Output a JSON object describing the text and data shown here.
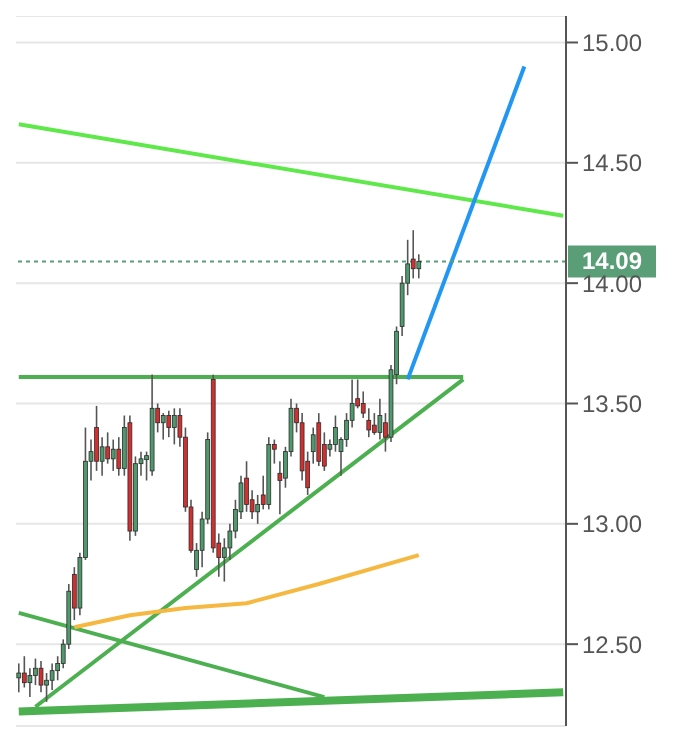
{
  "chart_data": {
    "type": "candlestick",
    "tick_labels": "y",
    "grid": "y",
    "ylim": [
      12.16,
      15.11
    ],
    "yticks": [
      {
        "value": 12.5,
        "label": "12.50"
      },
      {
        "value": 13,
        "label": "13.00"
      },
      {
        "value": 13.5,
        "label": "13.50"
      },
      {
        "value": 14,
        "label": "14.00"
      },
      {
        "value": 14.5,
        "label": "14.50"
      },
      {
        "value": 15,
        "label": "15.00"
      }
    ],
    "categories": [
      null,
      null,
      null,
      null,
      null,
      null,
      null,
      null,
      null,
      null,
      null,
      null,
      null,
      null,
      null,
      null,
      null,
      null,
      null,
      null,
      null,
      null,
      null,
      null,
      null,
      null,
      null,
      null,
      null,
      null,
      null,
      null,
      null,
      null,
      null,
      null,
      null,
      null,
      null,
      null,
      null,
      null,
      null,
      null,
      null,
      null,
      null,
      null,
      null,
      null,
      null,
      null,
      null,
      null,
      null,
      null,
      null,
      null,
      null,
      null,
      null,
      null,
      null,
      null,
      null,
      null,
      null,
      null,
      null,
      null,
      null,
      null,
      null,
      null,
      null,
      null,
      null,
      null,
      null,
      null,
      null,
      null,
      null,
      null,
      null,
      null,
      null,
      null,
      null,
      null,
      null,
      null,
      null,
      null,
      null,
      null,
      null,
      null,
      null
    ],
    "ohlc": [
      [
        12.36,
        12.42,
        12.3,
        12.38
      ],
      [
        12.38,
        12.45,
        12.32,
        12.34
      ],
      [
        12.34,
        12.4,
        12.28,
        12.37
      ],
      [
        12.37,
        12.44,
        12.33,
        12.4
      ],
      [
        12.4,
        12.43,
        12.3,
        12.33
      ],
      [
        12.33,
        12.38,
        12.26,
        12.35
      ],
      [
        12.35,
        12.42,
        12.31,
        12.39
      ],
      [
        12.39,
        12.45,
        12.35,
        12.42
      ],
      [
        12.42,
        12.52,
        12.4,
        12.5
      ],
      [
        12.5,
        12.75,
        12.48,
        12.72
      ],
      [
        12.79,
        12.82,
        12.6,
        12.65
      ],
      [
        12.65,
        12.88,
        12.62,
        12.86
      ],
      [
        12.86,
        13.4,
        12.85,
        13.26
      ],
      [
        13.26,
        13.35,
        13.18,
        13.3
      ],
      [
        13.4,
        13.49,
        13.22,
        13.26
      ],
      [
        13.26,
        13.36,
        13.2,
        13.32
      ],
      [
        13.32,
        13.38,
        13.25,
        13.27
      ],
      [
        13.27,
        13.35,
        13.22,
        13.31
      ],
      [
        13.31,
        13.36,
        13.2,
        13.23
      ],
      [
        13.23,
        13.45,
        13.2,
        13.4
      ],
      [
        13.42,
        13.45,
        12.93,
        12.97
      ],
      [
        12.97,
        13.28,
        12.95,
        13.25
      ],
      [
        13.25,
        13.3,
        13.2,
        13.27
      ],
      [
        13.27,
        13.3,
        13.18,
        13.28
      ],
      [
        13.22,
        13.62,
        13.2,
        13.48
      ],
      [
        13.48,
        13.5,
        13.38,
        13.42
      ],
      [
        13.42,
        13.46,
        13.35,
        13.45
      ],
      [
        13.45,
        13.47,
        13.36,
        13.4
      ],
      [
        13.4,
        13.48,
        13.33,
        13.45
      ],
      [
        13.45,
        13.48,
        13.32,
        13.36
      ],
      [
        13.36,
        13.4,
        13.05,
        13.07
      ],
      [
        13.07,
        13.1,
        12.88,
        12.89
      ],
      [
        12.81,
        12.92,
        12.78,
        12.89
      ],
      [
        12.89,
        13.05,
        12.82,
        13.02
      ],
      [
        13.02,
        13.38,
        13,
        13.35
      ],
      [
        13.6,
        13.62,
        12.88,
        12.9
      ],
      [
        12.92,
        12.96,
        12.78,
        12.86
      ],
      [
        12.86,
        12.94,
        12.76,
        12.9
      ],
      [
        12.9,
        13,
        12.85,
        12.97
      ],
      [
        12.97,
        13.1,
        12.94,
        13.06
      ],
      [
        13.05,
        13.2,
        13.02,
        13.17
      ],
      [
        13.19,
        13.26,
        13.05,
        13.08
      ],
      [
        13.1,
        13.14,
        13.02,
        13.05
      ],
      [
        13.05,
        13.12,
        13,
        13.08
      ],
      [
        13.12,
        13.2,
        13.06,
        13.08
      ],
      [
        13.08,
        13.36,
        13.06,
        13.33
      ],
      [
        13.33,
        13.35,
        13.25,
        13.31
      ],
      [
        13.21,
        13.26,
        13.04,
        13.18
      ],
      [
        13.19,
        13.32,
        13.15,
        13.3
      ],
      [
        13.3,
        13.52,
        13.28,
        13.48
      ],
      [
        13.48,
        13.5,
        13.38,
        13.42
      ],
      [
        13.42,
        13.46,
        13.18,
        13.22
      ],
      [
        13.26,
        13.3,
        13.12,
        13.15
      ],
      [
        13.3,
        13.4,
        13.25,
        13.37
      ],
      [
        13.42,
        13.46,
        13.24,
        13.26
      ],
      [
        13.33,
        13.38,
        13.22,
        13.24
      ],
      [
        13.31,
        13.35,
        13.28,
        13.33
      ],
      [
        13.33,
        13.45,
        13.3,
        13.4
      ],
      [
        13.3,
        13.36,
        13.2,
        13.35
      ],
      [
        13.35,
        13.46,
        13.32,
        13.43
      ],
      [
        13.43,
        13.6,
        13.4,
        13.5
      ],
      [
        13.52,
        13.6,
        13.48,
        13.49
      ],
      [
        13.5,
        13.55,
        13.44,
        13.46
      ],
      [
        13.43,
        13.48,
        13.36,
        13.39
      ],
      [
        13.41,
        13.46,
        13.37,
        13.38
      ],
      [
        13.38,
        13.52,
        13.35,
        13.45
      ],
      [
        13.42,
        13.46,
        13.3,
        13.36
      ],
      [
        13.36,
        13.66,
        13.34,
        13.64
      ],
      [
        13.62,
        13.82,
        13.58,
        13.8
      ],
      [
        13.82,
        14.03,
        13.78,
        14
      ],
      [
        14,
        14.18,
        13.95,
        14.08
      ],
      [
        14.1,
        14.22,
        14.02,
        14.06
      ],
      [
        14.06,
        14.12,
        14.02,
        14.09
      ],
      null,
      null,
      null,
      null,
      null,
      null,
      null,
      null,
      null,
      null,
      null,
      null,
      null,
      null,
      null,
      null,
      null,
      null,
      null,
      null,
      null,
      null,
      null,
      null,
      null,
      null
    ],
    "series": [
      {
        "type": "line",
        "color": "#5ee84a",
        "values": [
          14.66,
          null,
          null,
          null,
          null,
          null,
          null,
          null,
          null,
          null,
          null,
          null,
          null,
          null,
          null,
          null,
          null,
          null,
          null,
          null,
          null,
          null,
          null,
          null,
          null,
          null,
          null,
          null,
          null,
          null,
          null,
          null,
          null,
          null,
          null,
          null,
          null,
          null,
          null,
          null,
          null,
          null,
          null,
          null,
          null,
          null,
          null,
          null,
          null,
          null,
          null,
          null,
          null,
          null,
          null,
          null,
          null,
          null,
          null,
          null,
          null,
          null,
          null,
          null,
          null,
          null,
          null,
          null,
          null,
          null,
          null,
          null,
          null,
          null,
          null,
          null,
          null,
          null,
          null,
          null,
          null,
          null,
          null,
          null,
          null,
          null,
          null,
          null,
          null,
          null,
          null,
          null,
          null,
          null,
          null,
          null,
          null,
          null,
          14.28
        ]
      },
      {
        "type": "line",
        "color": "#4caf50",
        "values": [
          13.61,
          null,
          null,
          null,
          null,
          null,
          null,
          null,
          null,
          null,
          null,
          null,
          null,
          null,
          null,
          null,
          null,
          null,
          null,
          null,
          null,
          null,
          null,
          null,
          null,
          null,
          null,
          null,
          null,
          null,
          null,
          null,
          null,
          null,
          null,
          null,
          null,
          null,
          null,
          null,
          null,
          null,
          null,
          null,
          null,
          null,
          null,
          null,
          null,
          null,
          null,
          null,
          null,
          null,
          null,
          null,
          null,
          null,
          null,
          null,
          null,
          null,
          null,
          null,
          null,
          null,
          null,
          null,
          null,
          null,
          null,
          null,
          null,
          null,
          null,
          null,
          null,
          null,
          null,
          null,
          13.61,
          null,
          null,
          null,
          null,
          null,
          null,
          null,
          null,
          null,
          null,
          null,
          null,
          null,
          null,
          null,
          null,
          null,
          null
        ]
      },
      {
        "type": "line",
        "color": "#4caf50",
        "values": [
          null,
          null,
          null,
          12.24,
          null,
          null,
          null,
          null,
          null,
          null,
          null,
          null,
          null,
          null,
          null,
          null,
          null,
          null,
          null,
          null,
          null,
          null,
          null,
          null,
          null,
          null,
          null,
          null,
          null,
          null,
          null,
          null,
          null,
          null,
          null,
          null,
          null,
          null,
          null,
          null,
          null,
          null,
          null,
          null,
          null,
          null,
          null,
          null,
          null,
          null,
          null,
          null,
          null,
          null,
          null,
          null,
          null,
          null,
          null,
          null,
          null,
          null,
          null,
          null,
          null,
          null,
          null,
          null,
          null,
          null,
          null,
          null,
          null,
          null,
          null,
          null,
          null,
          null,
          null,
          null,
          13.6,
          null,
          null,
          null,
          null,
          null,
          null,
          null,
          null,
          null,
          null,
          null,
          null,
          null,
          null,
          null,
          null,
          null,
          null
        ]
      },
      {
        "type": "line",
        "color": "#4caf50",
        "values": [
          12.63,
          null,
          null,
          null,
          null,
          null,
          null,
          null,
          null,
          null,
          null,
          null,
          null,
          null,
          null,
          null,
          null,
          null,
          null,
          null,
          null,
          null,
          null,
          null,
          null,
          null,
          null,
          null,
          null,
          null,
          null,
          null,
          null,
          null,
          null,
          null,
          null,
          null,
          null,
          null,
          null,
          null,
          null,
          null,
          null,
          null,
          null,
          null,
          null,
          null,
          null,
          null,
          null,
          null,
          null,
          12.28,
          null,
          null,
          null,
          null,
          null,
          null,
          null,
          null,
          null,
          null,
          null,
          null,
          null,
          null,
          null,
          null,
          null,
          null,
          null,
          null,
          null,
          null,
          null,
          null,
          null,
          null,
          null,
          null,
          null,
          null,
          null,
          null,
          null,
          null,
          null,
          null,
          null,
          null,
          null,
          null,
          null,
          null,
          null
        ]
      },
      {
        "type": "line",
        "color": "#4caf50",
        "values": [
          12.22,
          null,
          null,
          null,
          null,
          null,
          null,
          null,
          null,
          null,
          null,
          null,
          null,
          null,
          null,
          null,
          null,
          null,
          null,
          null,
          null,
          null,
          null,
          null,
          null,
          null,
          null,
          null,
          null,
          null,
          null,
          null,
          null,
          null,
          null,
          null,
          null,
          null,
          null,
          null,
          null,
          null,
          null,
          null,
          null,
          null,
          null,
          null,
          null,
          null,
          null,
          null,
          null,
          null,
          null,
          null,
          null,
          null,
          null,
          null,
          null,
          null,
          null,
          null,
          null,
          null,
          null,
          null,
          null,
          null,
          null,
          null,
          null,
          null,
          null,
          null,
          null,
          null,
          null,
          null,
          null,
          null,
          null,
          null,
          null,
          null,
          null,
          null,
          null,
          null,
          null,
          null,
          null,
          null,
          null,
          null,
          null,
          null,
          12.3
        ]
      },
      {
        "type": "line",
        "color": "#f5b841",
        "values": [
          null,
          null,
          null,
          null,
          null,
          null,
          null,
          null,
          null,
          null,
          12.57,
          null,
          null,
          null,
          null,
          null,
          null,
          null,
          null,
          null,
          12.62,
          null,
          null,
          null,
          null,
          null,
          null,
          null,
          null,
          null,
          12.65,
          null,
          null,
          null,
          null,
          null,
          null,
          null,
          null,
          null,
          null,
          12.67,
          null,
          null,
          null,
          null,
          null,
          null,
          null,
          null,
          null,
          null,
          null,
          null,
          12.75,
          null,
          null,
          null,
          null,
          null,
          null,
          null,
          null,
          null,
          null,
          null,
          null,
          null,
          null,
          null,
          null,
          null,
          12.87,
          null,
          null,
          null,
          null,
          null,
          null,
          null,
          null,
          null,
          null,
          null,
          null,
          null,
          null,
          null,
          null,
          null,
          null,
          null,
          null,
          null,
          null,
          null,
          null,
          null,
          null
        ]
      },
      {
        "type": "line",
        "color": "#2196f3",
        "values": [
          null,
          null,
          null,
          null,
          null,
          null,
          null,
          null,
          null,
          null,
          null,
          null,
          null,
          null,
          null,
          null,
          null,
          null,
          null,
          null,
          null,
          null,
          null,
          null,
          null,
          null,
          null,
          null,
          null,
          null,
          null,
          null,
          null,
          null,
          null,
          null,
          null,
          null,
          null,
          null,
          null,
          null,
          null,
          null,
          null,
          null,
          null,
          null,
          null,
          null,
          null,
          null,
          null,
          null,
          null,
          null,
          null,
          null,
          null,
          null,
          null,
          null,
          null,
          null,
          null,
          null,
          null,
          null,
          null,
          null,
          13.6,
          null,
          null,
          null,
          null,
          null,
          null,
          null,
          null,
          null,
          null,
          null,
          null,
          null,
          null,
          null,
          null,
          null,
          null,
          null,
          null,
          14.9,
          null,
          null,
          null,
          null,
          null,
          null,
          null
        ]
      }
    ],
    "ref_lines": [
      {
        "axis": "y",
        "value": 14.09,
        "label": "14.09",
        "color": "#5a9e78",
        "line_style": "dotted"
      }
    ]
  }
}
